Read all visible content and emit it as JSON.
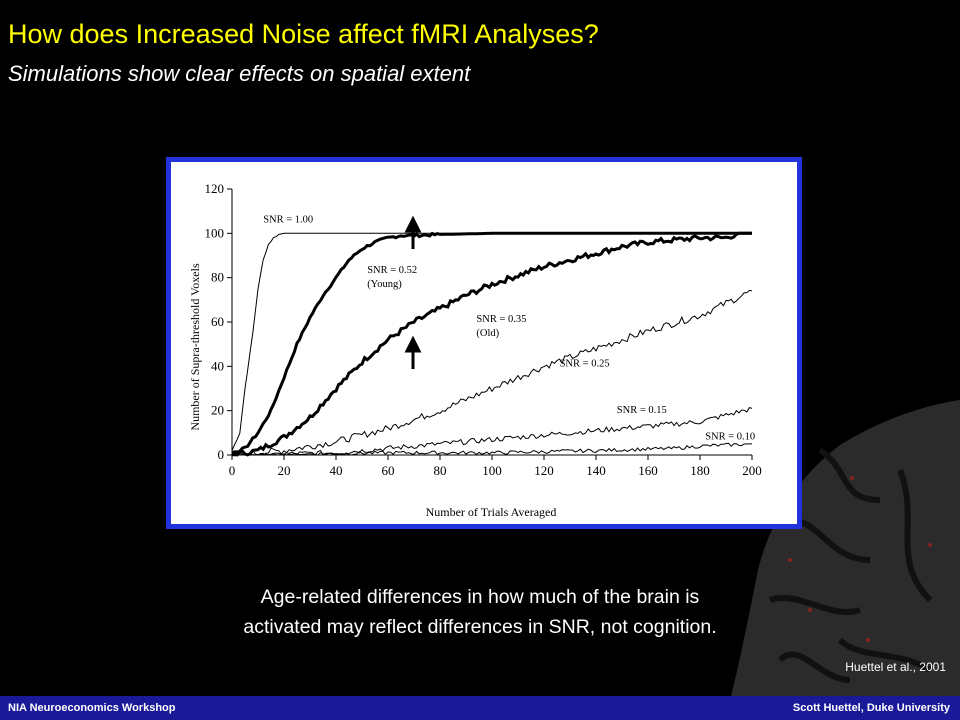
{
  "slide": {
    "title": "How does Increased Noise affect fMRI Analyses?",
    "subtitle": "Simulations show clear effects on spatial extent",
    "caption_line1": "Age-related differences in how much of the brain is",
    "caption_line2": "activated may reflect differences in SNR, not cognition.",
    "citation": "Huettel et al., 2001"
  },
  "footer": {
    "left": "NIA Neuroeconomics Workshop",
    "right": "Scott Huettel, Duke University"
  },
  "colors": {
    "title": "#ffff00",
    "background": "#000000",
    "panel_border": "#2233dd",
    "footer": "#1a1a99"
  },
  "chart_data": {
    "type": "line",
    "xlabel": "Number of Trials Averaged",
    "ylabel": "Number of Supra-threshold Voxels",
    "xlim": [
      0,
      200
    ],
    "ylim": [
      0,
      120
    ],
    "xticks": [
      0,
      20,
      40,
      60,
      80,
      100,
      120,
      140,
      160,
      180,
      200
    ],
    "yticks": [
      0,
      20,
      40,
      60,
      80,
      100,
      120
    ],
    "grid": false,
    "series": [
      {
        "name": "SNR = 1.00",
        "label_line2": "",
        "x": [
          0,
          3,
          5,
          8,
          10,
          12,
          14,
          16,
          18,
          20,
          200
        ],
        "values": [
          2,
          10,
          30,
          55,
          75,
          88,
          95,
          98,
          99.5,
          100,
          100
        ]
      },
      {
        "name": "SNR = 0.52",
        "label_line2": "(Young)",
        "x": [
          0,
          5,
          10,
          15,
          20,
          25,
          30,
          35,
          40,
          45,
          50,
          55,
          60,
          65,
          70,
          80,
          100,
          200
        ],
        "values": [
          1,
          3,
          10,
          20,
          35,
          50,
          62,
          72,
          80,
          88,
          93,
          96,
          98,
          99,
          99,
          99.5,
          100,
          100
        ]
      },
      {
        "name": "SNR = 0.35",
        "label_line2": "(Old)",
        "x": [
          0,
          10,
          20,
          30,
          40,
          50,
          60,
          70,
          80,
          90,
          100,
          110,
          120,
          130,
          140,
          150,
          160,
          170,
          180,
          190,
          195,
          200
        ],
        "values": [
          0,
          2,
          8,
          17,
          30,
          42,
          52,
          60,
          66,
          72,
          77,
          81,
          85,
          88,
          91,
          94,
          96,
          97,
          98,
          98,
          100,
          100
        ]
      },
      {
        "name": "SNR = 0.25",
        "label_line2": "",
        "x": [
          0,
          20,
          40,
          60,
          80,
          100,
          120,
          140,
          160,
          180,
          200
        ],
        "values": [
          0,
          2,
          6,
          12,
          20,
          30,
          40,
          48,
          56,
          63,
          74
        ]
      },
      {
        "name": "SNR = 0.15",
        "label_line2": "",
        "x": [
          0,
          40,
          60,
          80,
          100,
          120,
          140,
          160,
          180,
          200
        ],
        "values": [
          0,
          1,
          3,
          5,
          7,
          9,
          11,
          13,
          15,
          21
        ]
      },
      {
        "name": "SNR = 0.10",
        "label_line2": "",
        "x": [
          0,
          60,
          100,
          140,
          170,
          180,
          200
        ],
        "values": [
          0,
          1,
          1,
          2,
          3,
          4,
          5
        ]
      }
    ]
  }
}
